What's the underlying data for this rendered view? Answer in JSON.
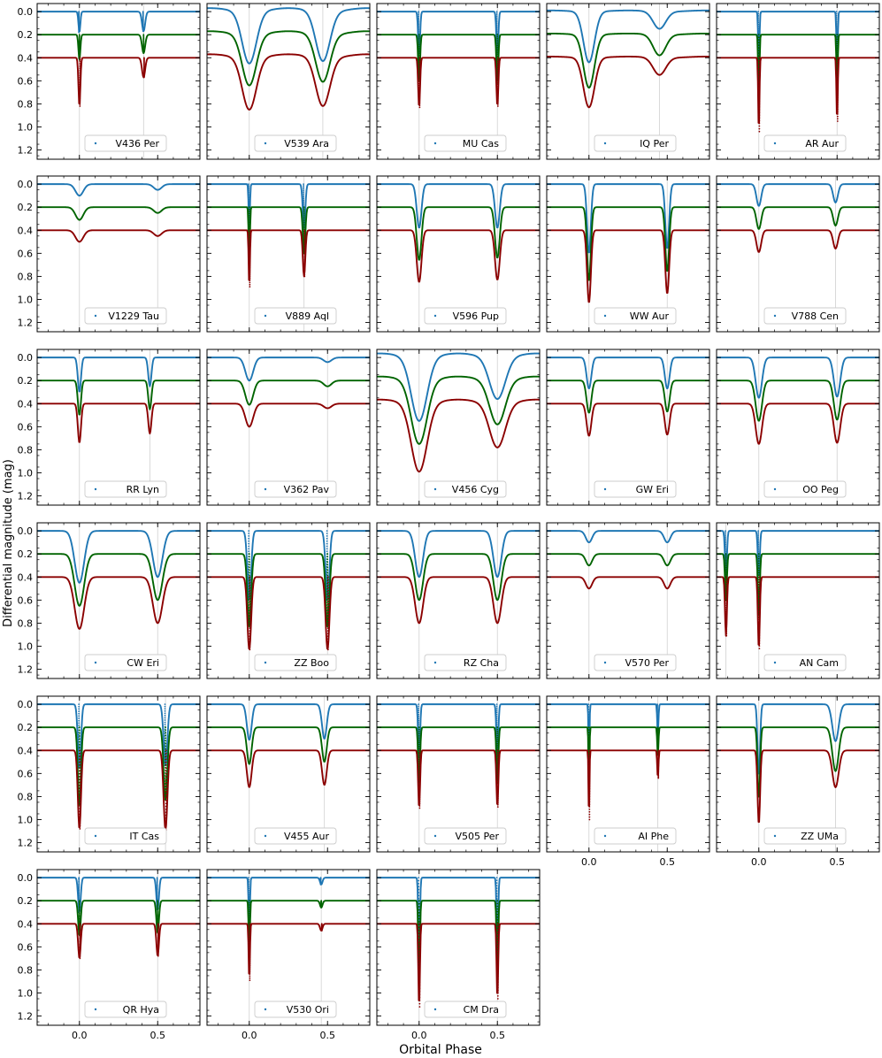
{
  "figure": {
    "xlabel": "Orbital Phase",
    "ylabel": "Differential magnitude (mag)",
    "colors": {
      "blue": "#1f77b4",
      "green": "#006400",
      "red": "#8b0000",
      "gridline": "#d0d0d0"
    }
  },
  "chart_data": {
    "type": "line",
    "layout": "small-multiples grid, 6 rows x 5 columns (28 panels)",
    "xlim": [
      -0.27,
      0.77
    ],
    "ylim": [
      1.28,
      -0.07
    ],
    "x_ticks": [
      0.0,
      0.5
    ],
    "x_tick_labels": [
      "0.0",
      "0.5"
    ],
    "y_ticks": [
      0.0,
      0.2,
      0.4,
      0.6,
      0.8,
      1.0,
      1.2
    ],
    "y_tick_labels": [
      "0.0",
      "0.2",
      "0.4",
      "0.6",
      "0.8",
      "1.0",
      "1.2"
    ],
    "series_offsets": [
      0.0,
      0.2,
      0.4
    ],
    "series_names": [
      "blue band (offset 0.0)",
      "green band (offset 0.2)",
      "red band (offset 0.4)"
    ],
    "panels": [
      {
        "name": "V436 Per",
        "p": 0.0,
        "s": 0.41,
        "d1": [
          0.18,
          0.22,
          0.42
        ],
        "d2": [
          0.17,
          0.16,
          0.17
        ],
        "w1": 0.006,
        "w2": 0.01,
        "ell": 0.0,
        "dotted": true
      },
      {
        "name": "V539 Ara",
        "p": 0.0,
        "s": 0.47,
        "d1": [
          0.45,
          0.44,
          0.45
        ],
        "d2": [
          0.43,
          0.41,
          0.42
        ],
        "w1": 0.045,
        "w2": 0.045,
        "ell": 0.03,
        "dotted": false
      },
      {
        "name": "MU Cas",
        "p": 0.0,
        "s": 0.5,
        "d1": [
          0.38,
          0.4,
          0.43
        ],
        "d2": [
          0.39,
          0.42,
          0.42
        ],
        "w1": 0.006,
        "w2": 0.006,
        "ell": 0.0,
        "dotted": true
      },
      {
        "name": "IQ Per",
        "p": 0.0,
        "s": 0.45,
        "d1": [
          0.44,
          0.46,
          0.43
        ],
        "d2": [
          0.15,
          0.18,
          0.15
        ],
        "w1": 0.035,
        "w2": 0.04,
        "ell": 0.01,
        "dotted": false
      },
      {
        "name": "AR Aur",
        "p": 0.0,
        "s": 0.5,
        "d1": [
          0.5,
          0.62,
          0.64
        ],
        "d2": [
          0.48,
          0.52,
          0.55
        ],
        "w1": 0.004,
        "w2": 0.004,
        "ell": 0.0,
        "dotted": true
      },
      {
        "name": "V1229 Tau",
        "p": 0.0,
        "s": 0.5,
        "d1": [
          0.1,
          0.11,
          0.1
        ],
        "d2": [
          0.05,
          0.05,
          0.05
        ],
        "w1": 0.025,
        "w2": 0.025,
        "ell": 0.0,
        "dotted": false
      },
      {
        "name": "V889 Aql",
        "p": 0.0,
        "s": 0.35,
        "d1": [
          0.4,
          0.5,
          0.49
        ],
        "d2": [
          0.38,
          0.4,
          0.4
        ],
        "w1": 0.004,
        "w2": 0.008,
        "ell": 0.0,
        "dotted": true
      },
      {
        "name": "V596 Pup",
        "p": 0.0,
        "s": 0.5,
        "d1": [
          0.38,
          0.46,
          0.45
        ],
        "d2": [
          0.38,
          0.44,
          0.43
        ],
        "w1": 0.015,
        "w2": 0.015,
        "ell": 0.0,
        "dotted": false
      },
      {
        "name": "WW Aur",
        "p": 0.0,
        "s": 0.5,
        "d1": [
          0.6,
          0.64,
          0.63
        ],
        "d2": [
          0.56,
          0.56,
          0.55
        ],
        "w1": 0.012,
        "w2": 0.012,
        "ell": 0.0,
        "dotted": false
      },
      {
        "name": "V788 Cen",
        "p": 0.0,
        "s": 0.49,
        "d1": [
          0.19,
          0.19,
          0.19
        ],
        "d2": [
          0.16,
          0.16,
          0.16
        ],
        "w1": 0.015,
        "w2": 0.015,
        "ell": 0.0,
        "dotted": false
      },
      {
        "name": "RR Lyn",
        "p": 0.0,
        "s": 0.45,
        "d1": [
          0.3,
          0.3,
          0.34
        ],
        "d2": [
          0.25,
          0.25,
          0.26
        ],
        "w1": 0.01,
        "w2": 0.01,
        "ell": 0.0,
        "dotted": false
      },
      {
        "name": "V362 Pav",
        "p": 0.0,
        "s": 0.5,
        "d1": [
          0.2,
          0.21,
          0.2
        ],
        "d2": [
          0.04,
          0.05,
          0.04
        ],
        "w1": 0.025,
        "w2": 0.025,
        "ell": 0.0,
        "dotted": false
      },
      {
        "name": "V456 Cyg",
        "p": 0.0,
        "s": 0.5,
        "d1": [
          0.55,
          0.55,
          0.59
        ],
        "d2": [
          0.36,
          0.38,
          0.38
        ],
        "w1": 0.05,
        "w2": 0.05,
        "ell": 0.035,
        "dotted": false
      },
      {
        "name": "GW Eri",
        "p": 0.0,
        "s": 0.5,
        "d1": [
          0.27,
          0.28,
          0.28
        ],
        "d2": [
          0.27,
          0.27,
          0.27
        ],
        "w1": 0.015,
        "w2": 0.015,
        "ell": 0.0,
        "dotted": false
      },
      {
        "name": "OO Peg",
        "p": 0.0,
        "s": 0.5,
        "d1": [
          0.35,
          0.35,
          0.35
        ],
        "d2": [
          0.34,
          0.34,
          0.34
        ],
        "w1": 0.02,
        "w2": 0.02,
        "ell": 0.0,
        "dotted": false
      },
      {
        "name": "CW Eri",
        "p": 0.0,
        "s": 0.5,
        "d1": [
          0.45,
          0.45,
          0.45
        ],
        "d2": [
          0.4,
          0.4,
          0.4
        ],
        "w1": 0.03,
        "w2": 0.03,
        "ell": 0.0,
        "dotted": false
      },
      {
        "name": "ZZ Boo",
        "p": 0.0,
        "s": 0.5,
        "d1": [
          0.6,
          0.63,
          0.63
        ],
        "d2": [
          0.6,
          0.63,
          0.63
        ],
        "w1": 0.012,
        "w2": 0.012,
        "ell": 0.0,
        "dotted": true
      },
      {
        "name": "RZ Cha",
        "p": 0.0,
        "s": 0.5,
        "d1": [
          0.4,
          0.4,
          0.4
        ],
        "d2": [
          0.4,
          0.4,
          0.4
        ],
        "w1": 0.025,
        "w2": 0.025,
        "ell": 0.0,
        "dotted": false
      },
      {
        "name": "V570 Per",
        "p": 0.0,
        "s": 0.5,
        "d1": [
          0.1,
          0.1,
          0.1
        ],
        "d2": [
          0.1,
          0.1,
          0.1
        ],
        "w1": 0.02,
        "w2": 0.02,
        "ell": 0.0,
        "dotted": false
      },
      {
        "name": "AN Cam",
        "p": -0.21,
        "s": 0.0,
        "d1": [
          0.4,
          0.4,
          0.51
        ],
        "d2": [
          0.4,
          0.55,
          0.62
        ],
        "w1": 0.006,
        "w2": 0.006,
        "ell": 0.0,
        "dotted": true
      },
      {
        "name": "IT Cas",
        "p": 0.0,
        "s": 0.55,
        "d1": [
          0.55,
          0.68,
          0.68
        ],
        "d2": [
          0.53,
          0.63,
          0.69
        ],
        "w1": 0.01,
        "w2": 0.012,
        "ell": 0.0,
        "dotted": true
      },
      {
        "name": "V455 Aur",
        "p": 0.0,
        "s": 0.48,
        "d1": [
          0.31,
          0.32,
          0.32
        ],
        "d2": [
          0.3,
          0.3,
          0.3
        ],
        "w1": 0.015,
        "w2": 0.015,
        "ell": 0.0,
        "dotted": false
      },
      {
        "name": "V505 Per",
        "p": 0.0,
        "s": 0.5,
        "d1": [
          0.48,
          0.5,
          0.5
        ],
        "d2": [
          0.47,
          0.48,
          0.49
        ],
        "w1": 0.006,
        "w2": 0.006,
        "ell": 0.0,
        "dotted": true
      },
      {
        "name": "AI Phe",
        "p": 0.0,
        "s": 0.44,
        "d1": [
          0.6,
          0.6,
          0.6
        ],
        "d2": [
          0.25,
          0.24,
          0.24
        ],
        "w1": 0.003,
        "w2": 0.004,
        "ell": 0.0,
        "dotted": true
      },
      {
        "name": "ZZ UMa",
        "p": 0.0,
        "s": 0.49,
        "d1": [
          0.62,
          0.62,
          0.64
        ],
        "d2": [
          0.32,
          0.38,
          0.32
        ],
        "w1": 0.008,
        "w2": 0.02,
        "ell": 0.0,
        "dotted": false
      },
      {
        "name": "QR Hya",
        "p": 0.0,
        "s": 0.5,
        "d1": [
          0.3,
          0.3,
          0.3
        ],
        "d2": [
          0.28,
          0.28,
          0.28
        ],
        "w1": 0.008,
        "w2": 0.008,
        "ell": 0.0,
        "dotted": true
      },
      {
        "name": "V530 Ori",
        "p": 0.0,
        "s": 0.46,
        "d1": [
          0.5,
          0.5,
          0.49
        ],
        "d2": [
          0.06,
          0.06,
          0.06
        ],
        "w1": 0.004,
        "w2": 0.008,
        "ell": 0.0,
        "dotted": true
      },
      {
        "name": "CM Dra",
        "p": 0.0,
        "s": 0.5,
        "d1": [
          0.7,
          0.7,
          0.72
        ],
        "d2": [
          0.62,
          0.64,
          0.65
        ],
        "w1": 0.005,
        "w2": 0.005,
        "ell": 0.0,
        "dotted": true
      }
    ]
  }
}
